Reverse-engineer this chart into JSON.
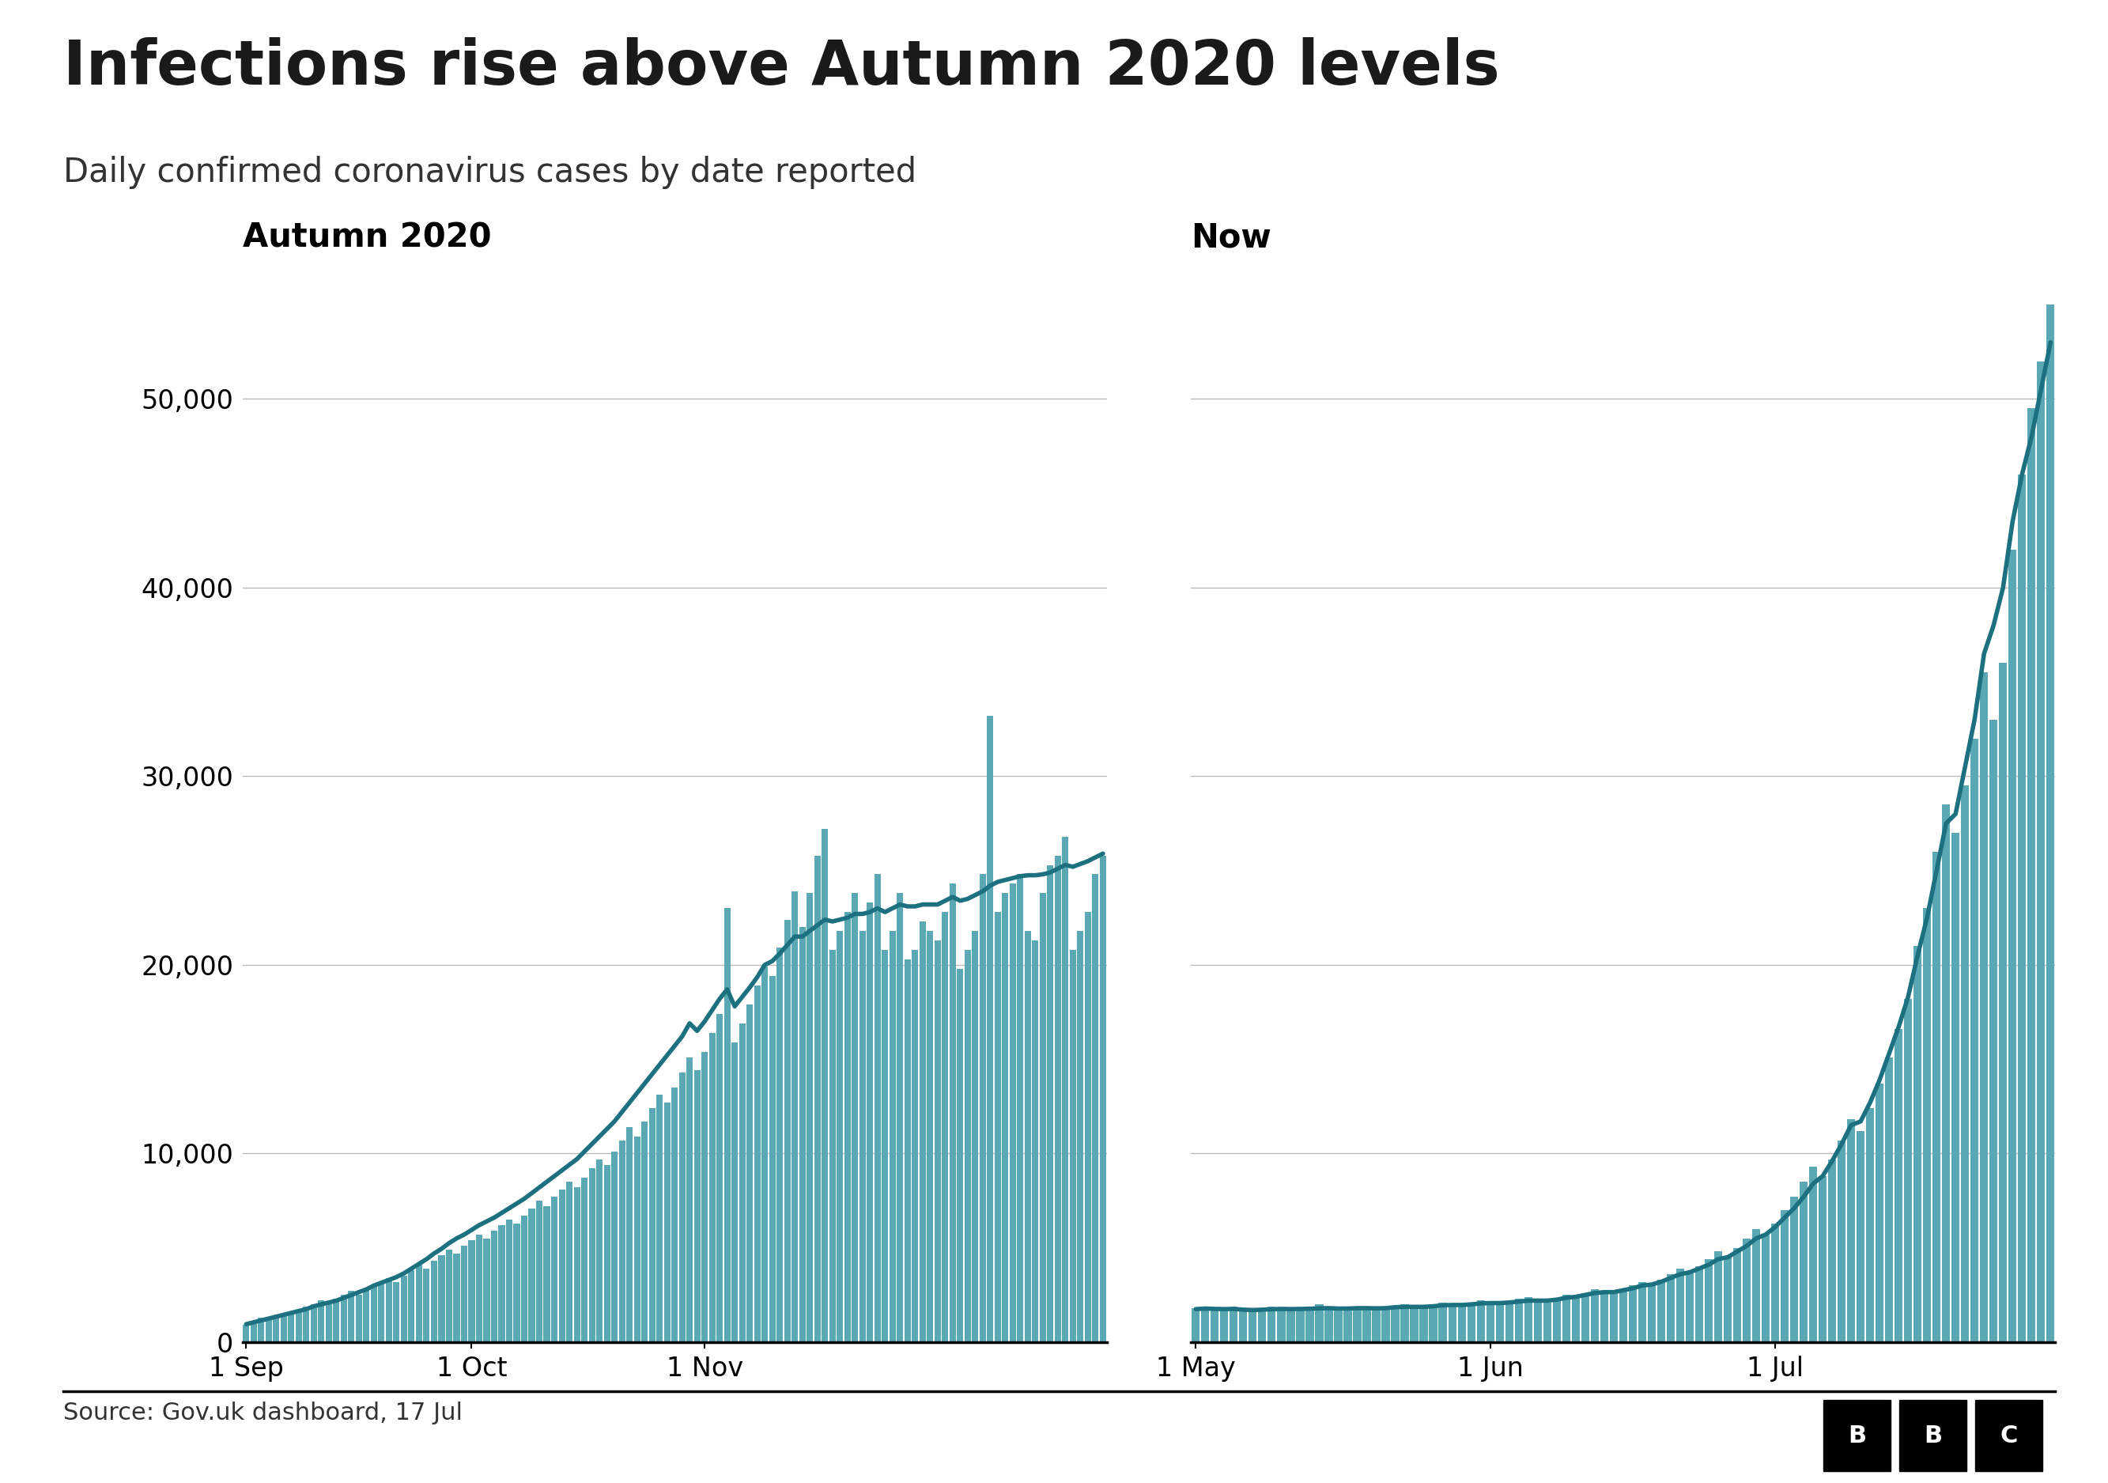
{
  "title": "Infections rise above Autumn 2020 levels",
  "subtitle": "Daily confirmed coronavirus cases by date reported",
  "source": "Source: Gov.uk dashboard, 17 Jul",
  "left_panel_title": "Autumn 2020",
  "right_panel_title": "Now",
  "bar_color": "#5ba8b5",
  "line_color": "#1d7080",
  "background_color": "#ffffff",
  "ylim": [
    0,
    57000
  ],
  "yticks": [
    0,
    10000,
    20000,
    30000,
    40000,
    50000
  ],
  "left_xtick_labels": [
    "1 Sep",
    "1 Oct",
    "1 Nov"
  ],
  "right_xtick_labels": [
    "1 May",
    "1 Jun",
    "1 Jul"
  ],
  "autumn2020_bars": [
    900,
    1100,
    1300,
    1200,
    1400,
    1500,
    1600,
    1700,
    1900,
    2000,
    2200,
    2000,
    2300,
    2500,
    2700,
    2500,
    2800,
    3000,
    3200,
    3400,
    3200,
    3500,
    3800,
    4100,
    3900,
    4300,
    4600,
    4900,
    4700,
    5100,
    5400,
    5700,
    5500,
    5900,
    6200,
    6500,
    6300,
    6700,
    7100,
    7500,
    7200,
    7700,
    8100,
    8500,
    8200,
    8700,
    9200,
    9700,
    9400,
    10100,
    10700,
    11400,
    10900,
    11700,
    12400,
    13100,
    12700,
    13500,
    14300,
    15100,
    14400,
    15400,
    16400,
    17400,
    23000,
    15900,
    16900,
    17900,
    18900,
    19900,
    19400,
    20900,
    22400,
    23900,
    22000,
    23800,
    25800,
    27200,
    20800,
    21800,
    22800,
    23800,
    21800,
    23300,
    24800,
    20800,
    21800,
    23800,
    20300,
    20800,
    22300,
    21800,
    21300,
    22800,
    24300,
    19800,
    20800,
    21800,
    24800,
    33200,
    22800,
    23800,
    24300,
    24800,
    21800,
    21300,
    23800,
    25300,
    25800,
    26800,
    20800,
    21800,
    22800,
    24800,
    25800
  ],
  "autumn2020_line": [
    950,
    1050,
    1150,
    1250,
    1350,
    1450,
    1550,
    1650,
    1750,
    1900,
    2000,
    2100,
    2200,
    2350,
    2500,
    2650,
    2800,
    3000,
    3150,
    3300,
    3450,
    3650,
    3900,
    4150,
    4400,
    4700,
    4950,
    5250,
    5500,
    5700,
    5950,
    6200,
    6400,
    6600,
    6850,
    7100,
    7350,
    7600,
    7900,
    8200,
    8500,
    8800,
    9100,
    9400,
    9700,
    10100,
    10500,
    10900,
    11300,
    11700,
    12200,
    12700,
    13200,
    13700,
    14200,
    14700,
    15200,
    15700,
    16200,
    16900,
    16500,
    17000,
    17600,
    18200,
    18700,
    17800,
    18300,
    18800,
    19350,
    20000,
    20200,
    20600,
    21050,
    21500,
    21500,
    21800,
    22100,
    22400,
    22300,
    22400,
    22500,
    22700,
    22700,
    22800,
    23000,
    22800,
    23000,
    23200,
    23100,
    23100,
    23200,
    23200,
    23200,
    23400,
    23600,
    23400,
    23500,
    23700,
    23900,
    24200,
    24400,
    24500,
    24600,
    24700,
    24750,
    24750,
    24800,
    24900,
    25100,
    25300,
    25200,
    25350,
    25500,
    25700,
    25900
  ],
  "left_xtick_positions": [
    0,
    30,
    61
  ],
  "now_bars": [
    1800,
    1900,
    1700,
    1800,
    1900,
    1700,
    1600,
    1700,
    1900,
    1800,
    1700,
    1800,
    1900,
    2000,
    1800,
    1700,
    1800,
    1900,
    1800,
    1700,
    1800,
    1900,
    2000,
    1900,
    1800,
    2000,
    2100,
    2000,
    1900,
    2100,
    2200,
    2100,
    2000,
    2100,
    2300,
    2400,
    2200,
    2100,
    2300,
    2500,
    2400,
    2600,
    2800,
    2700,
    2600,
    2800,
    3000,
    3200,
    3000,
    3300,
    3600,
    3900,
    3700,
    4000,
    4400,
    4800,
    4500,
    5000,
    5500,
    6000,
    5700,
    6300,
    7000,
    7700,
    8500,
    9300,
    8800,
    9700,
    10700,
    11800,
    11200,
    12400,
    13700,
    15100,
    16600,
    18200,
    21000,
    23000,
    26000,
    28500,
    27000,
    29500,
    32000,
    35500,
    33000,
    36000,
    42000,
    46000,
    49500,
    52000,
    55000
  ],
  "now_line": [
    1750,
    1780,
    1760,
    1750,
    1760,
    1720,
    1700,
    1720,
    1740,
    1760,
    1750,
    1760,
    1770,
    1790,
    1800,
    1780,
    1780,
    1800,
    1800,
    1790,
    1800,
    1850,
    1870,
    1870,
    1870,
    1900,
    1950,
    1970,
    1970,
    2000,
    2050,
    2070,
    2070,
    2100,
    2150,
    2200,
    2200,
    2200,
    2250,
    2350,
    2400,
    2500,
    2600,
    2650,
    2650,
    2750,
    2850,
    3000,
    3050,
    3200,
    3400,
    3600,
    3700,
    3900,
    4100,
    4400,
    4500,
    4800,
    5100,
    5500,
    5700,
    6100,
    6600,
    7100,
    7700,
    8400,
    8800,
    9600,
    10500,
    11500,
    11700,
    12700,
    13900,
    15300,
    16700,
    18300,
    20500,
    22500,
    25000,
    27500,
    28000,
    30500,
    33000,
    36500,
    38000,
    40000,
    43500,
    46000,
    48000,
    50500,
    53000
  ],
  "right_xtick_positions": [
    0,
    31,
    61
  ]
}
